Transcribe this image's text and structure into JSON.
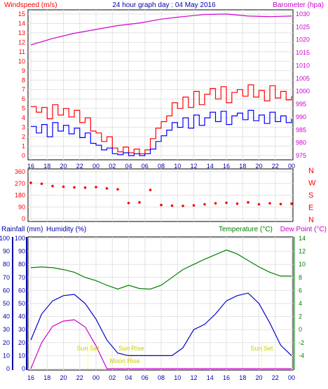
{
  "chart_data": [
    {
      "type": "line",
      "title": "24 hour graph day : 04 May 2016",
      "ylabel_left": "Windspeed (m/s)",
      "ylabel_right": "Barometer (hpa)",
      "x_ticks": [
        "16",
        "18",
        "20",
        "22",
        "00",
        "02",
        "04",
        "06",
        "08",
        "10",
        "12",
        "14",
        "16",
        "18",
        "20",
        "22",
        "00"
      ],
      "ylim_left": [
        0,
        15
      ],
      "yticks_left": [
        "0",
        "1",
        "2",
        "3",
        "4",
        "5",
        "6",
        "7",
        "8",
        "9",
        "10",
        "11",
        "12",
        "13",
        "14",
        "15"
      ],
      "ylim_right": [
        975,
        1030
      ],
      "yticks_right": [
        "975",
        "980",
        "985",
        "990",
        "995",
        "1000",
        "1005",
        "1010",
        "1015",
        "1020",
        "1025",
        "1030"
      ],
      "series": [
        {
          "name": "gust",
          "color": "#ff0000",
          "x": [
            0,
            1,
            2,
            3,
            4,
            5,
            6,
            7,
            8,
            9,
            10,
            11,
            12,
            13,
            14,
            15,
            16,
            17,
            18,
            19,
            20,
            21,
            22,
            23,
            24,
            25,
            26,
            27,
            28,
            29,
            30,
            31,
            32,
            33,
            34,
            35,
            36,
            37,
            38,
            39,
            40,
            41,
            42,
            43,
            44,
            45,
            46,
            47,
            48
          ],
          "values": [
            5.2,
            4.6,
            5.1,
            3.9,
            5.4,
            4.3,
            5.0,
            4.1,
            4.8,
            3.5,
            4.0,
            2.6,
            2.4,
            1.5,
            2.0,
            0.8,
            0.4,
            0.9,
            0.3,
            0.7,
            0.2,
            0.6,
            1.8,
            2.9,
            3.6,
            4.2,
            5.6,
            5.0,
            6.2,
            5.1,
            6.8,
            5.4,
            6.5,
            7.1,
            6.0,
            7.3,
            5.6,
            6.7,
            7.0,
            6.3,
            7.5,
            6.2,
            6.9,
            5.8,
            7.4,
            6.1,
            6.8,
            5.9,
            6.3
          ]
        },
        {
          "name": "wind",
          "color": "#0000ff",
          "x": [
            0,
            1,
            2,
            3,
            4,
            5,
            6,
            7,
            8,
            9,
            10,
            11,
            12,
            13,
            14,
            15,
            16,
            17,
            18,
            19,
            20,
            21,
            22,
            23,
            24,
            25,
            26,
            27,
            28,
            29,
            30,
            31,
            32,
            33,
            34,
            35,
            36,
            37,
            38,
            39,
            40,
            41,
            42,
            43,
            44,
            45,
            46,
            47,
            48
          ],
          "values": [
            3.1,
            2.4,
            3.3,
            2.0,
            3.5,
            2.6,
            3.2,
            2.3,
            2.9,
            1.9,
            2.4,
            1.3,
            1.1,
            0.6,
            0.8,
            0.2,
            0.1,
            0.3,
            0.0,
            0.2,
            0.0,
            0.2,
            0.7,
            1.5,
            2.1,
            2.7,
            3.5,
            3.0,
            4.0,
            2.9,
            4.3,
            3.2,
            4.0,
            4.6,
            3.6,
            4.7,
            3.3,
            4.2,
            4.5,
            3.8,
            4.8,
            3.7,
            4.3,
            3.4,
            4.6,
            3.6,
            4.2,
            3.5,
            3.9
          ]
        },
        {
          "name": "barometer",
          "color": "#cc00cc",
          "axis": "right",
          "x": [
            0,
            4,
            8,
            12,
            16,
            20,
            24,
            28,
            32,
            36,
            40,
            44,
            48
          ],
          "values": [
            1018,
            1020.5,
            1022.5,
            1024,
            1025.5,
            1026.5,
            1028,
            1029,
            1029.8,
            1030,
            1029.2,
            1029,
            1029.2
          ]
        }
      ]
    },
    {
      "type": "scatter",
      "ylabel_right": [
        "N",
        "W",
        "S",
        "E",
        "N"
      ],
      "ylim": [
        0,
        360
      ],
      "yticks_left": [
        "0",
        "90",
        "180",
        "270",
        "360"
      ],
      "series": [
        {
          "name": "wind-direction",
          "color": "#ff0000",
          "x": [
            0,
            2,
            4,
            6,
            8,
            10,
            12,
            14,
            16,
            18,
            20,
            22,
            24,
            26,
            28,
            30,
            32,
            34,
            36,
            38,
            40,
            42,
            44,
            46,
            48
          ],
          "values": [
            275,
            268,
            250,
            245,
            240,
            238,
            242,
            232,
            225,
            120,
            125,
            220,
            105,
            100,
            98,
            102,
            110,
            118,
            122,
            115,
            125,
            110,
            118,
            112,
            115
          ]
        }
      ]
    },
    {
      "type": "line",
      "ylabel_left": "Rainfall (mm)",
      "ylabel_left2": "Humidity (%)",
      "ylabel_right": "Temperature (°C)",
      "ylabel_right2": "Dew Point (°C)",
      "ylim_left": [
        0,
        100
      ],
      "yticks_left": [
        "0",
        "10",
        "20",
        "30",
        "40",
        "50",
        "60",
        "70",
        "80",
        "90",
        "100"
      ],
      "ylim_right": [
        -6,
        14
      ],
      "yticks_right": [
        "-4",
        "-2",
        "0",
        "2",
        "4",
        "6",
        "8",
        "10",
        "12",
        "14"
      ],
      "annotations": [
        "Sun Set",
        "Sun Rise",
        "Moon Rise",
        "Sun Set"
      ],
      "series": [
        {
          "name": "temperature",
          "color": "#008000",
          "axis": "right",
          "x": [
            0,
            2,
            4,
            6,
            8,
            10,
            12,
            14,
            16,
            18,
            20,
            22,
            24,
            26,
            28,
            30,
            32,
            34,
            36,
            38,
            40,
            42,
            44,
            46,
            48
          ],
          "values": [
            9.5,
            9.6,
            9.5,
            9.2,
            8.8,
            8.0,
            7.5,
            6.8,
            6.2,
            6.8,
            6.3,
            6.2,
            6.8,
            8.0,
            9.2,
            10.0,
            10.8,
            11.5,
            12.2,
            11.6,
            10.6,
            9.6,
            8.8,
            8.2,
            8.2
          ]
        },
        {
          "name": "humidity",
          "color": "#0000cc",
          "axis": "left",
          "x": [
            0,
            2,
            4,
            6,
            8,
            10,
            12,
            14,
            16,
            18,
            20,
            22,
            24,
            26,
            28,
            30,
            32,
            34,
            36,
            38,
            40,
            42,
            44,
            46,
            48
          ],
          "values": [
            22,
            42,
            52,
            56,
            57,
            50,
            38,
            22,
            12,
            10,
            10,
            10,
            10,
            10,
            16,
            30,
            34,
            42,
            52,
            56,
            58,
            50,
            35,
            18,
            10
          ]
        },
        {
          "name": "dew-point",
          "color": "#cc00cc",
          "axis": "right",
          "x": [
            0,
            2,
            4,
            6,
            8,
            10,
            12,
            14,
            16,
            18,
            20,
            22,
            24,
            26,
            28,
            30,
            32,
            34,
            36,
            38,
            40,
            42,
            44,
            46,
            48
          ],
          "values": [
            -6,
            -2,
            0.5,
            1.3,
            1.5,
            0.4,
            -2.5,
            -6,
            -6,
            -6,
            -6,
            -6,
            -6,
            -6,
            -6,
            -6,
            -6,
            -6,
            -6,
            -6,
            -6,
            -6,
            -6,
            -6,
            -6
          ]
        }
      ]
    }
  ]
}
